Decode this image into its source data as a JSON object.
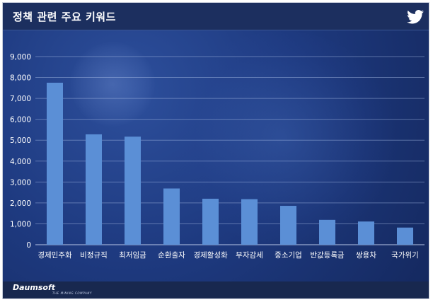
{
  "header": {
    "title": "정책 관련 주요 키워드"
  },
  "footer": {
    "brand": "Daumsoft",
    "tagline": "THE MINING COMPANY"
  },
  "icons": {
    "social": "twitter-bird-icon"
  },
  "colors": {
    "bar": "#5b8fd6",
    "background": "#1e3a80",
    "header": "#1c2f5f"
  },
  "chart_data": {
    "type": "bar",
    "title": "정책 관련 주요 키워드",
    "categories": [
      "경제민주화",
      "비정규직",
      "최저임금",
      "순환출자",
      "경제활성화",
      "부자감세",
      "중소기업",
      "반값등록금",
      "쌍용차",
      "국가위기"
    ],
    "values": [
      7750,
      5280,
      5170,
      2690,
      2200,
      2180,
      1860,
      1190,
      1110,
      820
    ],
    "ylim": [
      0,
      9000
    ],
    "yticks": [
      "0",
      "1,000",
      "2,000",
      "3,000",
      "4,000",
      "5,000",
      "6,000",
      "7,000",
      "8,000",
      "9,000"
    ],
    "grid": true,
    "legend": "none"
  }
}
